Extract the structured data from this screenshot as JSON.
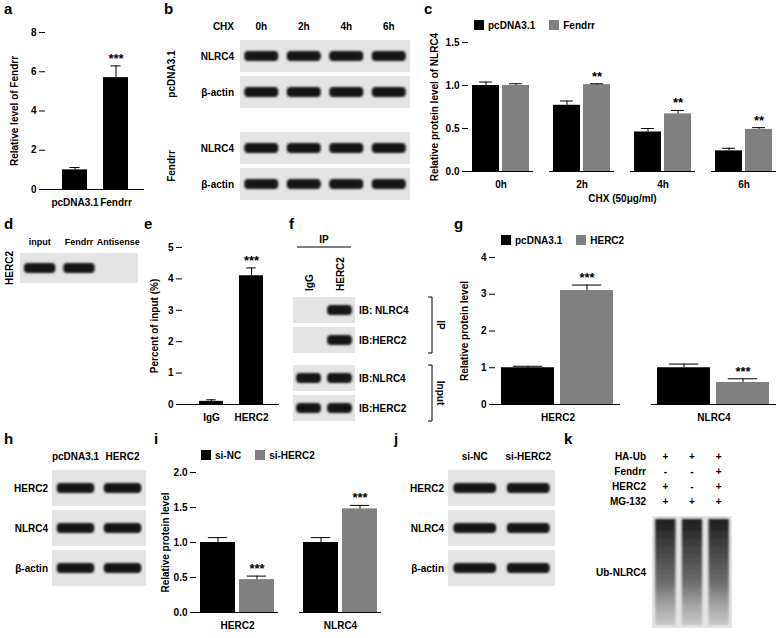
{
  "chart_data": [
    {
      "panel": "a",
      "type": "bar",
      "categories": [
        "pcDNA3.1",
        "Fendrr"
      ],
      "values": [
        1.0,
        5.7
      ],
      "errors": [
        0.12,
        0.6
      ],
      "color": "#000000",
      "ylabel": "Relative level of Fendrr",
      "ylim": [
        0,
        8
      ],
      "yticks": [
        0,
        2,
        4,
        6,
        8
      ],
      "annotations": [
        {
          "category": "Fendrr",
          "text": "***"
        }
      ]
    },
    {
      "panel": "c",
      "type": "bar",
      "categories": [
        "0h",
        "2h",
        "4h",
        "6h"
      ],
      "series": [
        {
          "name": "pcDNA3.1",
          "color": "#000000",
          "values": [
            1.0,
            0.77,
            0.46,
            0.24
          ],
          "errors": [
            0.04,
            0.05,
            0.04,
            0.03
          ]
        },
        {
          "name": "Fendrr",
          "color": "#808080",
          "values": [
            1.0,
            1.01,
            0.67,
            0.49
          ],
          "errors": [
            0.02,
            0.01,
            0.04,
            0.02
          ]
        }
      ],
      "xlabel": "CHX (50μg/ml)",
      "ylabel": "Relative protein level of NLRC4",
      "ylim": [
        0,
        1.5
      ],
      "yticks": [
        {
          "value": 0,
          "label": "0.0"
        },
        {
          "value": 0.5,
          "label": "0.5"
        },
        {
          "value": 1,
          "label": "1.0"
        },
        {
          "value": 1.5,
          "label": "1.5"
        }
      ],
      "legend": "top",
      "annotations": [
        {
          "category": "2h",
          "series": "Fendrr",
          "text": "**"
        },
        {
          "category": "4h",
          "series": "Fendrr",
          "text": "**"
        },
        {
          "category": "6h",
          "series": "Fendrr",
          "text": "**"
        }
      ]
    },
    {
      "panel": "e",
      "type": "bar",
      "categories": [
        "IgG",
        "HERC2"
      ],
      "values": [
        0.1,
        4.1
      ],
      "errors": [
        0.05,
        0.25
      ],
      "color": "#000000",
      "ylabel": "Percent of input (%)",
      "ylim": [
        0,
        5
      ],
      "yticks": [
        0,
        1,
        2,
        3,
        4,
        5
      ],
      "annotations": [
        {
          "category": "HERC2",
          "text": "***"
        }
      ]
    },
    {
      "panel": "g",
      "type": "bar",
      "categories": [
        "HERC2",
        "NLRC4"
      ],
      "series": [
        {
          "name": "pcDNA3.1",
          "color": "#000000",
          "values": [
            1.0,
            1.0
          ],
          "errors": [
            0.04,
            0.1
          ]
        },
        {
          "name": "HERC2",
          "color": "#808080",
          "values": [
            3.1,
            0.6
          ],
          "errors": [
            0.15,
            0.1
          ]
        }
      ],
      "ylabel": "Relative protein level",
      "ylim": [
        0,
        4
      ],
      "yticks": [
        0,
        1,
        2,
        3,
        4
      ],
      "legend": "top",
      "annotations": [
        {
          "category": "HERC2",
          "series": "HERC2",
          "text": "***"
        },
        {
          "category": "NLRC4",
          "series": "HERC2",
          "text": "***"
        }
      ]
    },
    {
      "panel": "i",
      "type": "bar",
      "categories": [
        "HERC2",
        "NLRC4"
      ],
      "series": [
        {
          "name": "si-NC",
          "color": "#000000",
          "values": [
            1.0,
            1.0
          ],
          "errors": [
            0.07,
            0.07
          ]
        },
        {
          "name": "si-HERC2",
          "color": "#808080",
          "values": [
            0.47,
            1.48
          ],
          "errors": [
            0.05,
            0.05
          ]
        }
      ],
      "ylabel": "Relative protein level",
      "ylim": [
        0,
        2.0
      ],
      "yticks": [
        {
          "value": 0,
          "label": "0.0"
        },
        {
          "value": 0.5,
          "label": "0.5"
        },
        {
          "value": 1,
          "label": "1.0"
        },
        {
          "value": 1.5,
          "label": "1.5"
        },
        {
          "value": 2,
          "label": "2.0"
        }
      ],
      "legend": "top",
      "annotations": [
        {
          "category": "HERC2",
          "series": "si-HERC2",
          "text": "***"
        },
        {
          "category": "NLRC4",
          "series": "si-HERC2",
          "text": "***"
        }
      ]
    }
  ],
  "blots": [
    {
      "panel": "b",
      "lane_title": "CHX",
      "lanes": [
        "0h",
        "2h",
        "4h",
        "6h"
      ],
      "groups": [
        {
          "name": "pcDNA3.1",
          "rows": [
            {
              "label": "NLRC4"
            },
            {
              "label": "β-actin"
            }
          ]
        },
        {
          "name": "Fendrr",
          "rows": [
            {
              "label": "NLRC4"
            },
            {
              "label": "β-actin"
            }
          ]
        }
      ]
    },
    {
      "panel": "d",
      "lanes": [
        "input",
        "Fendrr",
        "Antisense"
      ],
      "groups": [
        {
          "name": "HERC2",
          "rows": [
            {
              "bands": [
                true,
                true,
                false
              ]
            }
          ]
        }
      ]
    },
    {
      "panel": "f",
      "lane_group": "IP",
      "lanes": [
        "IgG",
        "HERC2"
      ],
      "groups": [
        {
          "name": "IP",
          "rows": [
            {
              "label": "IB: NLRC4",
              "bands": [
                false,
                true
              ]
            },
            {
              "label": "IB:HERC2",
              "bands": [
                false,
                true
              ]
            }
          ]
        },
        {
          "name": "Input",
          "rows": [
            {
              "label": "IB:NLRC4",
              "bands": [
                true,
                true
              ]
            },
            {
              "label": "IB:HERC2",
              "bands": [
                true,
                true
              ]
            }
          ]
        }
      ]
    },
    {
      "panel": "h",
      "lanes": [
        "pcDNA3.1",
        "HERC2"
      ],
      "rows": [
        {
          "label": "HERC2"
        },
        {
          "label": "NLRC4"
        },
        {
          "label": "β-actin"
        }
      ]
    },
    {
      "panel": "j",
      "lanes": [
        "si-NC",
        "si-HERC2"
      ],
      "rows": [
        {
          "label": "HERC2"
        },
        {
          "label": "NLRC4"
        },
        {
          "label": "β-actin"
        }
      ]
    },
    {
      "panel": "k",
      "conditions": [
        {
          "label": "HA-Ub",
          "marks": [
            "+",
            "+",
            "+"
          ]
        },
        {
          "label": "Fendrr",
          "marks": [
            "-",
            "-",
            "+"
          ]
        },
        {
          "label": "HERC2",
          "marks": [
            "+",
            "-",
            "+"
          ]
        },
        {
          "label": "MG-132",
          "marks": [
            "+",
            "+",
            "+"
          ]
        }
      ],
      "rows": [
        {
          "label": "Ub-NLRC4",
          "smear": true
        }
      ]
    }
  ]
}
